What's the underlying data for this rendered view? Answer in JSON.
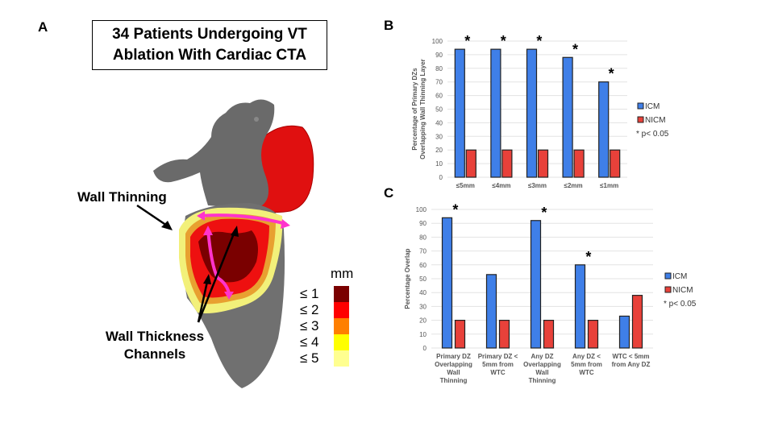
{
  "panel_a": {
    "letter": "A",
    "title_lines": [
      "34 Patients Undergoing VT",
      "Ablation With Cardiac CTA"
    ],
    "annotation_wall_thinning": "Wall Thinning",
    "annotation_channels": [
      "Wall Thickness",
      "Channels"
    ],
    "scale": {
      "unit": "mm",
      "items": [
        {
          "label": "≤ 1",
          "color": "#7a0000"
        },
        {
          "label": "≤ 2",
          "color": "#ff0000"
        },
        {
          "label": "≤ 3",
          "color": "#ff7f00"
        },
        {
          "label": "≤ 4",
          "color": "#ffff00"
        },
        {
          "label": "≤ 5",
          "color": "#ffff90"
        }
      ]
    }
  },
  "chart_data": [
    {
      "panel": "B",
      "type": "bar",
      "title": "",
      "xlabel": "",
      "ylabel": "Percentage of Primary DZs Overlapping Wall Thinning Layer",
      "ylabel_lines": [
        "Percentage of Primary DZs",
        "Overlapping Wall Thinning Layer"
      ],
      "ylim": [
        0,
        100
      ],
      "yticks": [
        0,
        10,
        20,
        30,
        40,
        50,
        60,
        70,
        80,
        90,
        100
      ],
      "grid": true,
      "categories": [
        "≤5mm",
        "≤4mm",
        "≤3mm",
        "≤2mm",
        "≤1mm"
      ],
      "category_lines": [
        [
          "≤5mm"
        ],
        [
          "≤4mm"
        ],
        [
          "≤3mm"
        ],
        [
          "≤2mm"
        ],
        [
          "≤1mm"
        ]
      ],
      "series": [
        {
          "name": "ICM",
          "color": "#3f7fe8",
          "values": [
            94,
            94,
            94,
            88,
            70
          ]
        },
        {
          "name": "NICM",
          "color": "#e8413a",
          "values": [
            20,
            20,
            20,
            20,
            20
          ]
        }
      ],
      "significance": [
        true,
        true,
        true,
        true,
        true
      ],
      "significance_note": "* p< 0.05",
      "legend_position": "right"
    },
    {
      "panel": "C",
      "type": "bar",
      "title": "",
      "xlabel": "",
      "ylabel": "Percentage Overlap",
      "ylabel_lines": [
        "Percentage Overlap"
      ],
      "ylim": [
        0,
        100
      ],
      "yticks": [
        0,
        10,
        20,
        30,
        40,
        50,
        60,
        70,
        80,
        90,
        100
      ],
      "grid": true,
      "categories": [
        "Primary DZ Overlapping Wall Thinning",
        "Primary DZ < 5mm from WTC",
        "Any DZ Overlapping Wall Thinning",
        "Any DZ < 5mm from WTC",
        "WTC < 5mm from Any DZ"
      ],
      "category_lines": [
        [
          "Primary DZ",
          "Overlapping",
          "Wall",
          "Thinning"
        ],
        [
          "Primary DZ <",
          "5mm from",
          "WTC"
        ],
        [
          "Any DZ",
          "Overlapping",
          "Wall",
          "Thinning"
        ],
        [
          "Any DZ <",
          "5mm from",
          "WTC"
        ],
        [
          "WTC < 5mm",
          "from Any DZ"
        ]
      ],
      "series": [
        {
          "name": "ICM",
          "color": "#3f7fe8",
          "values": [
            94,
            53,
            92,
            60,
            23
          ]
        },
        {
          "name": "NICM",
          "color": "#e8413a",
          "values": [
            20,
            20,
            20,
            20,
            38
          ]
        }
      ],
      "significance": [
        true,
        false,
        true,
        true,
        false
      ],
      "significance_note": "* p< 0.05",
      "legend_position": "right"
    }
  ]
}
